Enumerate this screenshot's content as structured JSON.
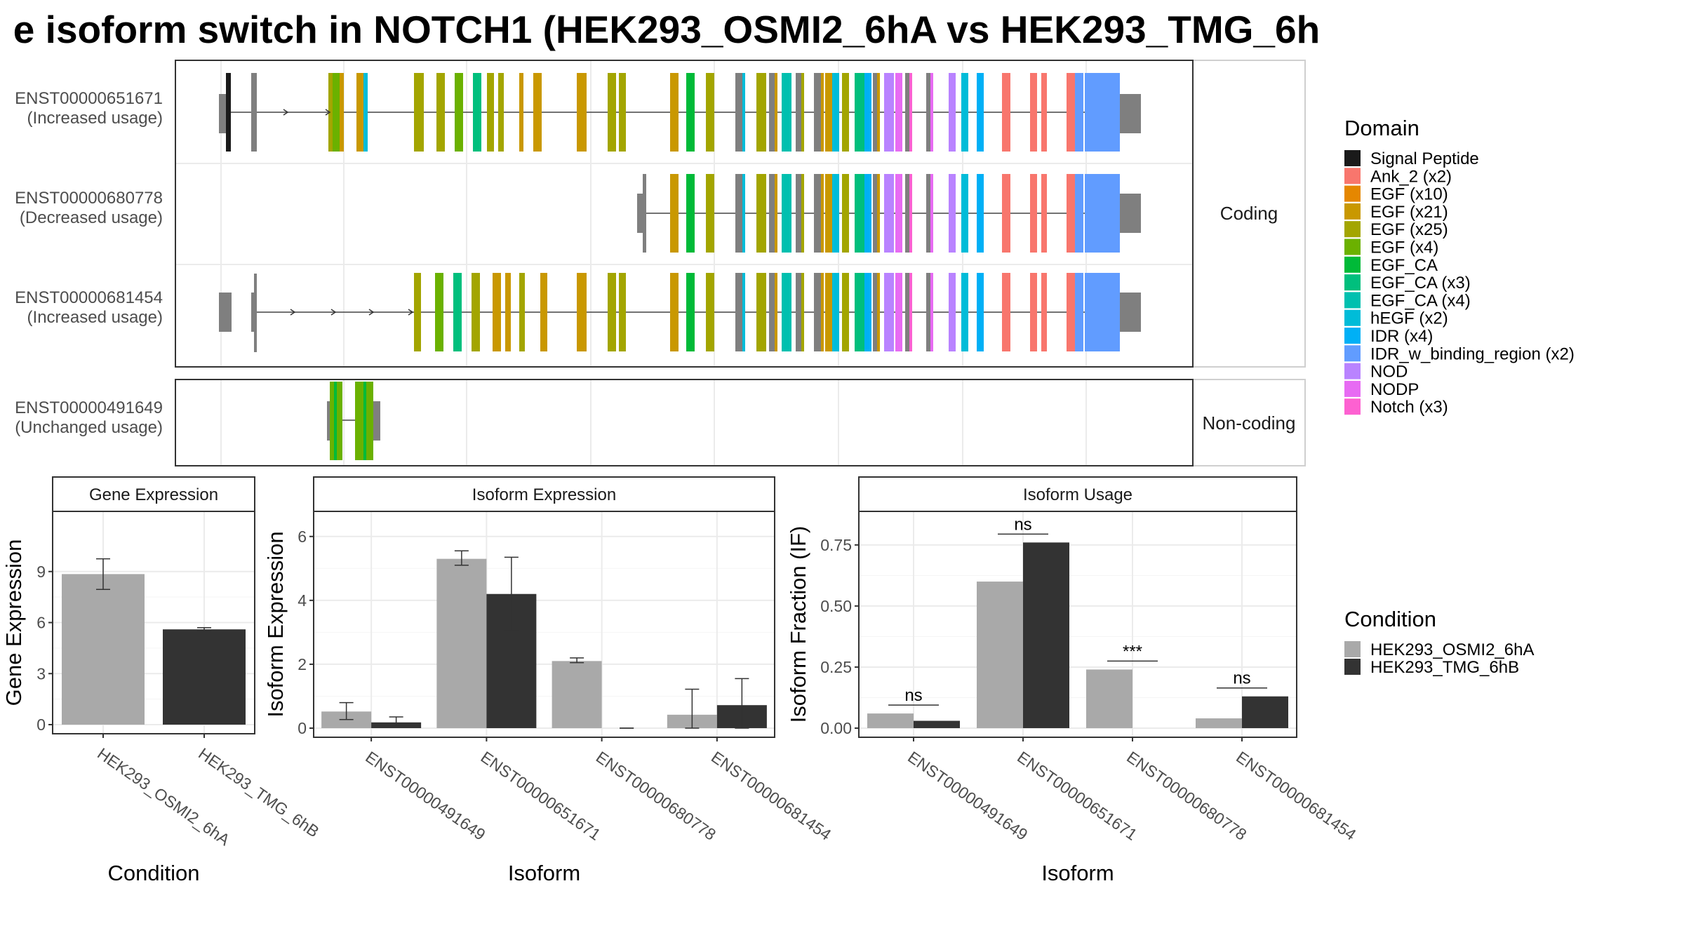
{
  "title": "e isoform switch in NOTCH1 (HEK293_OSMI2_6hA vs HEK293_TMG_6h",
  "panels": {
    "coding_strip": "Coding",
    "noncoding_strip": "Non-coding",
    "gene_expression_strip": "Gene Expression",
    "isoform_expression_strip": "Isoform Expression",
    "isoform_usage_strip": "Isoform Usage"
  },
  "domain_legend": {
    "title": "Domain",
    "items": [
      {
        "label": "Signal Peptide",
        "color": "#1a1a1a"
      },
      {
        "label": "Ank_2 (x2)",
        "color": "#F8766D"
      },
      {
        "label": "EGF (x10)",
        "color": "#E58700"
      },
      {
        "label": "EGF (x21)",
        "color": "#C99800"
      },
      {
        "label": "EGF (x25)",
        "color": "#A3A500"
      },
      {
        "label": "EGF (x4)",
        "color": "#6BB100"
      },
      {
        "label": "EGF_CA",
        "color": "#00BA38"
      },
      {
        "label": "EGF_CA (x3)",
        "color": "#00BF7D"
      },
      {
        "label": "EGF_CA (x4)",
        "color": "#00C0AF"
      },
      {
        "label": "hEGF (x2)",
        "color": "#00BCD8"
      },
      {
        "label": "IDR (x4)",
        "color": "#00B0F6"
      },
      {
        "label": "IDR_w_binding_region (x2)",
        "color": "#619CFF"
      },
      {
        "label": "NOD",
        "color": "#B983FF"
      },
      {
        "label": "NODP",
        "color": "#E76BF3"
      },
      {
        "label": "Notch (x3)",
        "color": "#FD61D1"
      }
    ]
  },
  "condition_legend": {
    "title": "Condition",
    "items": [
      {
        "label": "HEK293_OSMI2_6hA",
        "color": "#A9A9A9"
      },
      {
        "label": "HEK293_TMG_6hB",
        "color": "#333333"
      }
    ]
  },
  "chart_data": [
    {
      "type": "gene-structure",
      "transcripts": [
        {
          "id": "ENST00000651671",
          "note": "(Increased usage)",
          "panel": "Coding"
        },
        {
          "id": "ENST00000680778",
          "note": "(Decreased usage)",
          "panel": "Coding"
        },
        {
          "id": "ENST00000681454",
          "note": "(Increased usage)",
          "panel": "Coding"
        },
        {
          "id": "ENST00000491649",
          "note": "(Unchanged usage)",
          "panel": "Non-coding"
        }
      ]
    },
    {
      "type": "bar",
      "title": "Gene Expression",
      "xlabel": "Condition",
      "ylabel": "Gene Expression",
      "ylim": [
        0,
        12
      ],
      "yticks": [
        0,
        3,
        6,
        9
      ],
      "categories": [
        "HEK293_OSMI2_6hA",
        "HEK293_TMG_6hB"
      ],
      "values": [
        8.85,
        5.6
      ],
      "errors": [
        [
          7.95,
          9.75
        ],
        [
          5.5,
          5.7
        ]
      ]
    },
    {
      "type": "bar",
      "title": "Isoform Expression",
      "xlabel": "Isoform",
      "ylabel": "Isoform Expression",
      "ylim": [
        0,
        6.5
      ],
      "yticks": [
        0,
        2,
        4,
        6
      ],
      "categories": [
        "ENST00000491649",
        "ENST00000651671",
        "ENST00000680778",
        "ENST00000681454"
      ],
      "series": [
        {
          "name": "HEK293_OSMI2_6hA",
          "values": [
            0.52,
            5.3,
            2.1,
            0.42
          ],
          "errors": [
            [
              0.27,
              0.8
            ],
            [
              5.1,
              5.55
            ],
            [
              2.05,
              2.2
            ],
            [
              0.0,
              1.22
            ]
          ]
        },
        {
          "name": "HEK293_TMG_6hB",
          "values": [
            0.18,
            4.2,
            0.0,
            0.72
          ],
          "errors": [
            [
              0.05,
              0.35
            ],
            [
              3.05,
              5.35
            ],
            [
              0.0,
              0.0
            ],
            [
              0.0,
              1.55
            ]
          ]
        }
      ]
    },
    {
      "type": "bar",
      "title": "Isoform Usage",
      "xlabel": "Isoform",
      "ylabel": "Isoform Fraction (IF)",
      "ylim": [
        0,
        0.85
      ],
      "yticks": [
        "0.00",
        "0.25",
        "0.50",
        "0.75"
      ],
      "categories": [
        "ENST00000491649",
        "ENST00000651671",
        "ENST00000680778",
        "ENST00000681454"
      ],
      "series": [
        {
          "name": "HEK293_OSMI2_6hA",
          "values": [
            0.06,
            0.6,
            0.24,
            0.04
          ]
        },
        {
          "name": "HEK293_TMG_6hB",
          "values": [
            0.03,
            0.76,
            0.0,
            0.13
          ]
        }
      ],
      "significance": [
        "ns",
        "ns",
        "***",
        "ns"
      ]
    }
  ]
}
